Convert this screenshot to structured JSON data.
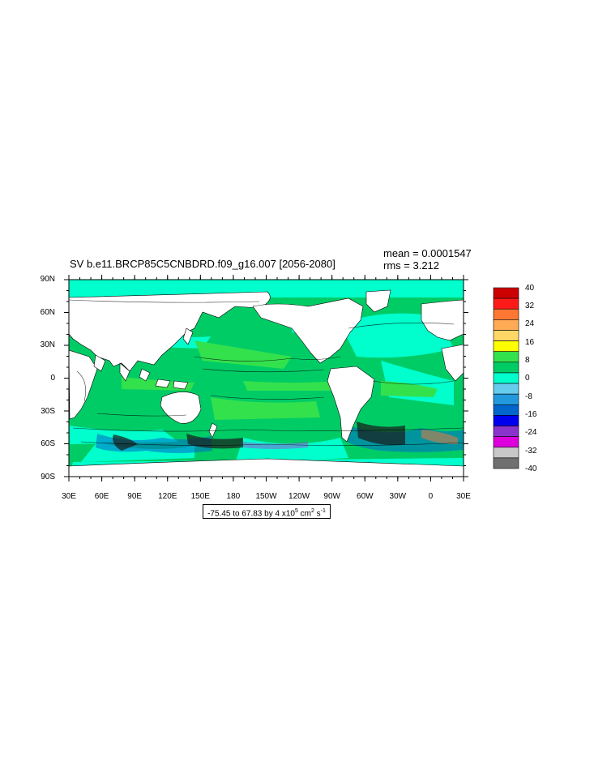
{
  "title": "SV b.e11.BRCP85C5CNBDRD.f09_g16.007 [2056-2080]",
  "stats": {
    "mean": "mean = 0.0001547",
    "rms": "rms = 3.212"
  },
  "map": {
    "projection": "cylindrical equidistant",
    "lon_range": [
      "30E",
      "30E"
    ],
    "lat_range": [
      "90S",
      "90N"
    ],
    "lat_labels": [
      "90N",
      "60N",
      "30N",
      "0",
      "30S",
      "60S",
      "90S"
    ],
    "lon_labels": [
      "30E",
      "60E",
      "90E",
      "120E",
      "150E",
      "180",
      "150W",
      "120W",
      "90W",
      "60W",
      "30W",
      "0",
      "30E"
    ],
    "land_color": "#ffffff",
    "dominant_ocean_colors": [
      "#00cc66",
      "#33e14d",
      "#00ffcc"
    ]
  },
  "colorbar": {
    "labels": [
      "40",
      "32",
      "24",
      "16",
      "8",
      "0",
      "-8",
      "-16",
      "-24",
      "-32",
      "-40"
    ],
    "colors": [
      "#cc0000",
      "#ff1a1a",
      "#ff7733",
      "#ffaa55",
      "#ffd766",
      "#ffff00",
      "#33e14d",
      "#00cc66",
      "#00ffcc",
      "#66ccee",
      "#2299dd",
      "#0066cc",
      "#0000ee",
      "#8833cc",
      "#dd00dd",
      "#c8c8c8",
      "#707070"
    ]
  },
  "info_box": {
    "prefix": "-75.45 to 67.83 by 4 x10",
    "exp1": "5",
    "unit": " cm",
    "exp2": "2",
    "unit2": " s",
    "exp3": "-1"
  }
}
